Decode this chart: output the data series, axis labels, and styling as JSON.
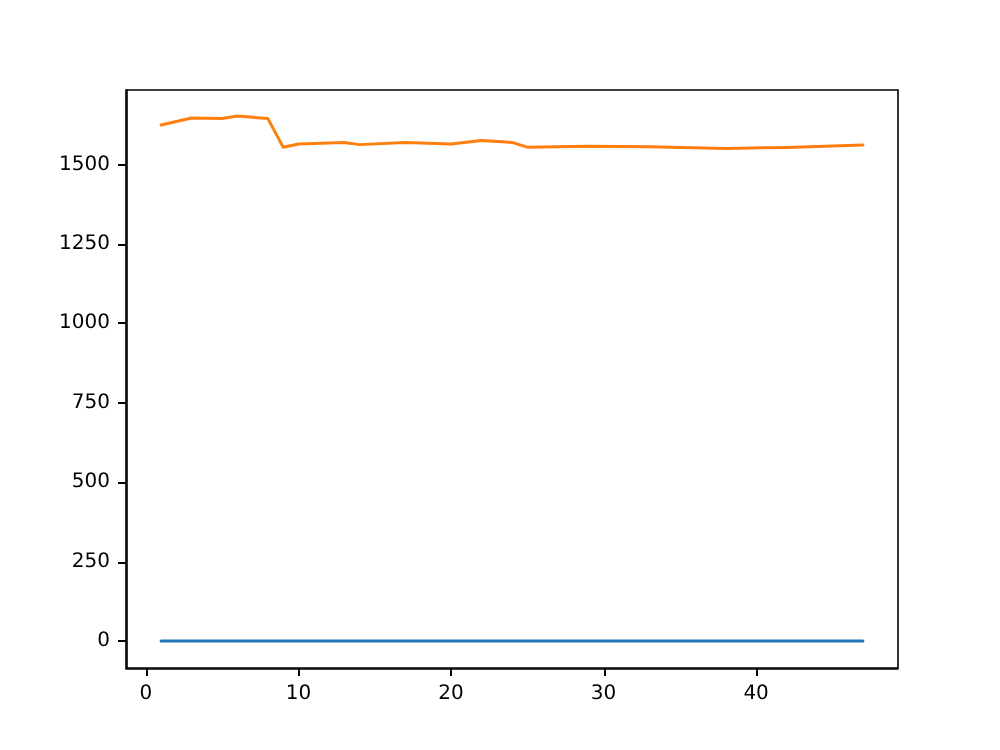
{
  "chart_data": {
    "type": "line",
    "xlim": [
      -1.3,
      49.3
    ],
    "xticks": [
      0,
      10,
      20,
      30,
      40
    ],
    "ylim": [
      -85,
      1735
    ],
    "yticks": [
      0,
      250,
      500,
      750,
      1000,
      1250,
      1500
    ],
    "grid": false,
    "marker": "none",
    "line_style": "solid",
    "series": [
      {
        "color": "#1f77b4",
        "x": [
          1,
          47
        ],
        "values": [
          0,
          0
        ]
      },
      {
        "color": "#ff7f0e",
        "x": [
          1,
          3,
          5,
          6,
          8,
          9,
          10,
          13,
          14,
          17,
          20,
          22,
          24,
          25,
          29,
          33,
          38,
          42,
          47
        ],
        "values": [
          1625,
          1647,
          1645,
          1653,
          1645,
          1555,
          1565,
          1570,
          1563,
          1570,
          1565,
          1576,
          1570,
          1555,
          1558,
          1556,
          1551,
          1554,
          1562
        ]
      }
    ]
  }
}
